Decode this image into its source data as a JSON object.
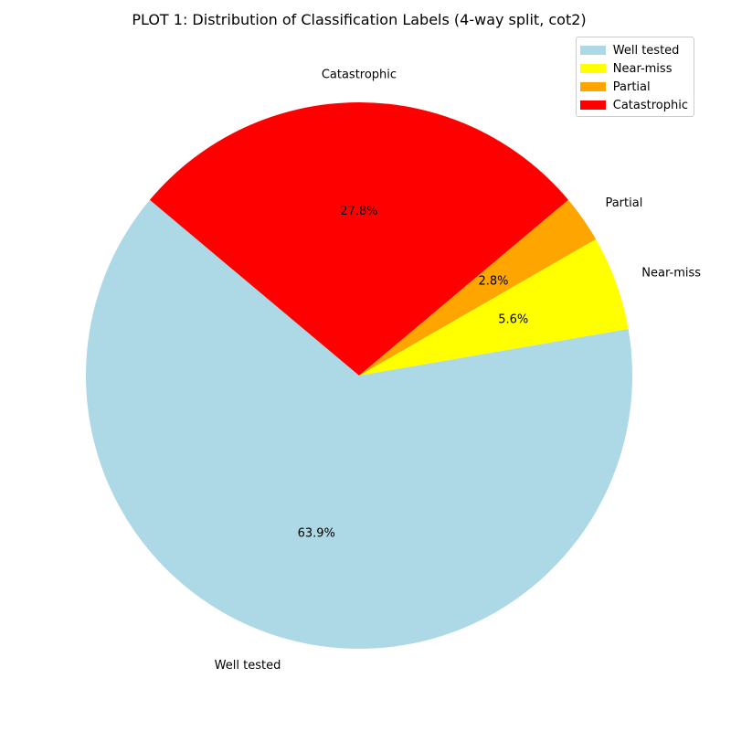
{
  "chart_data": {
    "type": "pie",
    "title": "PLOT 1: Distribution of Classification Labels (4-way split, cot2)",
    "categories": [
      "Well tested",
      "Near-miss",
      "Partial",
      "Catastrophic"
    ],
    "values": [
      63.9,
      5.6,
      2.8,
      27.8
    ],
    "value_labels": [
      "63.9%",
      "5.6%",
      "2.8%",
      "27.8%"
    ],
    "colors": [
      "#add8e6",
      "#ffff00",
      "#ffa500",
      "#ff0000"
    ],
    "start_angle_deg": 140,
    "direction": "counterclockwise",
    "legend": {
      "placement": "top-right",
      "entries": [
        "Well tested",
        "Near-miss",
        "Partial",
        "Catastrophic"
      ]
    }
  }
}
